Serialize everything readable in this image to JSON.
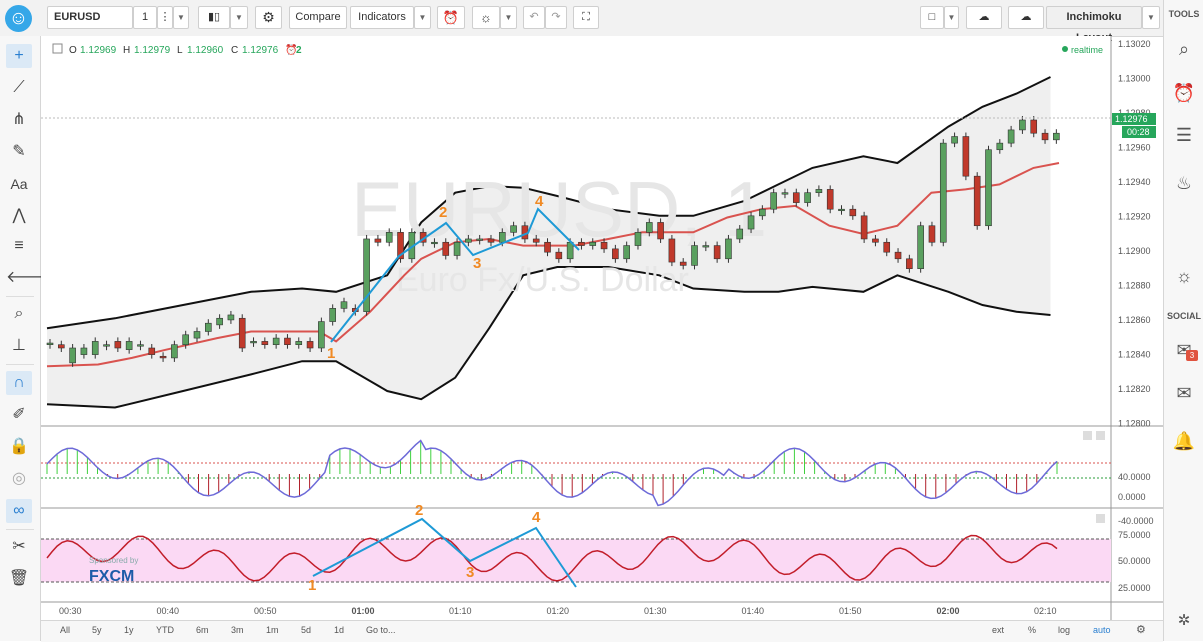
{
  "toolbar": {
    "symbol": "EURUSD",
    "interval": "1",
    "compare_label": "Compare",
    "indicators_label": "Indicators",
    "layout_label": "Inchimoku Layout"
  },
  "legend": {
    "o_label": "O",
    "o_value": "1.12969",
    "h_label": "H",
    "h_value": "1.12979",
    "l_label": "L",
    "l_value": "1.12960",
    "c_label": "C",
    "c_value": "1.12976",
    "alerts_count": "2",
    "realtime": "realtime"
  },
  "watermark": {
    "title": "EURUSD, 1",
    "subtitle": "Euro Fx/U.S. Dollar"
  },
  "sponsor": {
    "line1": "Sponsored by",
    "brand": "FXCM"
  },
  "price_axis": {
    "labels": [
      "1.13020",
      "1.13000",
      "1.12980",
      "1.12960",
      "1.12940",
      "1.12920",
      "1.12900",
      "1.12880",
      "1.12860",
      "1.12840",
      "1.12820",
      "1.12800"
    ],
    "current_price": "1.12976",
    "countdown": "00:28"
  },
  "osc1_axis": {
    "labels": [
      "40.0000",
      "0.0000",
      "-40.0000"
    ]
  },
  "osc2_axis": {
    "labels": [
      "75.0000",
      "50.0000",
      "25.0000"
    ]
  },
  "time_axis": {
    "labels": [
      "00:30",
      "00:40",
      "00:50",
      "01:00",
      "01:10",
      "01:20",
      "01:30",
      "01:40",
      "01:50",
      "02:00",
      "02:10"
    ]
  },
  "wave_labels": {
    "price": [
      "1",
      "2",
      "3",
      "4"
    ],
    "osc": [
      "1",
      "2",
      "3",
      "4"
    ]
  },
  "bottom": {
    "ranges": [
      "All",
      "5y",
      "1y",
      "YTD",
      "6m",
      "3m",
      "1m",
      "5d",
      "1d"
    ],
    "goto": "Go to...",
    "ext": "ext",
    "pct": "%",
    "log": "log",
    "auto": "auto"
  },
  "right_panel": {
    "tools": "TOOLS",
    "social": "SOCIAL",
    "badge": "3"
  },
  "chart_data": {
    "type": "candlestick",
    "x_range": [
      "00:27",
      "02:13"
    ],
    "y_range": [
      1.128,
      1.1303
    ],
    "bands_upper": [
      [
        0,
        1.12858
      ],
      [
        8,
        1.12864
      ],
      [
        16,
        1.12872
      ],
      [
        24,
        1.1288
      ],
      [
        30,
        1.12882
      ],
      [
        34,
        1.1288
      ],
      [
        40,
        1.1289
      ],
      [
        44,
        1.12922
      ],
      [
        48,
        1.1294
      ],
      [
        52,
        1.12944
      ],
      [
        56,
        1.12943
      ],
      [
        60,
        1.12938
      ],
      [
        66,
        1.1293
      ],
      [
        72,
        1.12926
      ],
      [
        76,
        1.12926
      ],
      [
        82,
        1.12935
      ],
      [
        86,
        1.12945
      ],
      [
        90,
        1.12955
      ],
      [
        96,
        1.12962
      ],
      [
        100,
        1.12958
      ],
      [
        106,
        1.1298
      ],
      [
        110,
        1.12992
      ],
      [
        114,
        1.13
      ],
      [
        118,
        1.1301
      ]
    ],
    "bands_lower": [
      [
        0,
        1.12812
      ],
      [
        8,
        1.1281
      ],
      [
        16,
        1.1282
      ],
      [
        24,
        1.1283
      ],
      [
        30,
        1.12838
      ],
      [
        34,
        1.12838
      ],
      [
        40,
        1.1282
      ],
      [
        44,
        1.12815
      ],
      [
        48,
        1.12828
      ],
      [
        52,
        1.12858
      ],
      [
        56,
        1.1289
      ],
      [
        60,
        1.12895
      ],
      [
        66,
        1.12895
      ],
      [
        72,
        1.1289
      ],
      [
        76,
        1.12882
      ],
      [
        82,
        1.1288
      ],
      [
        86,
        1.1288
      ],
      [
        90,
        1.12883
      ],
      [
        96,
        1.1288
      ],
      [
        100,
        1.1289
      ],
      [
        106,
        1.1288
      ],
      [
        110,
        1.12872
      ],
      [
        114,
        1.12868
      ],
      [
        118,
        1.12866
      ]
    ],
    "midline": [
      [
        0,
        1.12835
      ],
      [
        6,
        1.12836
      ],
      [
        10,
        1.1284
      ],
      [
        14,
        1.12845
      ],
      [
        20,
        1.12852
      ],
      [
        24,
        1.12856
      ],
      [
        28,
        1.12856
      ],
      [
        32,
        1.12856
      ],
      [
        34,
        1.1285
      ],
      [
        38,
        1.12868
      ],
      [
        42,
        1.1289
      ],
      [
        44,
        1.129
      ],
      [
        48,
        1.1291
      ],
      [
        52,
        1.12912
      ],
      [
        56,
        1.12908
      ],
      [
        62,
        1.12908
      ],
      [
        66,
        1.12912
      ],
      [
        70,
        1.12916
      ],
      [
        76,
        1.12916
      ],
      [
        80,
        1.12925
      ],
      [
        84,
        1.1293
      ],
      [
        88,
        1.12932
      ],
      [
        92,
        1.1292
      ],
      [
        96,
        1.12915
      ],
      [
        100,
        1.1292
      ],
      [
        104,
        1.1294
      ],
      [
        108,
        1.12942
      ],
      [
        112,
        1.12945
      ],
      [
        116,
        1.12955
      ],
      [
        119,
        1.12958
      ]
    ],
    "candles": [
      [
        0,
        1.12848,
        1.12849
      ],
      [
        2,
        1.12848,
        1.12846
      ],
      [
        4,
        1.12837,
        1.12846
      ],
      [
        6,
        1.12842,
        1.12846
      ],
      [
        8,
        1.12842,
        1.1285
      ],
      [
        10,
        1.12848,
        1.12848
      ],
      [
        12,
        1.1285,
        1.12846
      ],
      [
        14,
        1.12845,
        1.1285
      ],
      [
        16,
        1.12848,
        1.12848
      ],
      [
        18,
        1.12846,
        1.12842
      ],
      [
        20,
        1.12841,
        1.1284
      ],
      [
        22,
        1.1284,
        1.12848
      ],
      [
        24,
        1.12848,
        1.12854
      ],
      [
        26,
        1.12852,
        1.12856
      ],
      [
        28,
        1.12856,
        1.12861
      ],
      [
        30,
        1.1286,
        1.12864
      ],
      [
        32,
        1.12863,
        1.12866
      ],
      [
        34,
        1.12864,
        1.12846
      ],
      [
        36,
        1.1285,
        1.1285
      ],
      [
        38,
        1.1285,
        1.12848
      ],
      [
        40,
        1.12848,
        1.12852
      ],
      [
        42,
        1.12852,
        1.12848
      ],
      [
        44,
        1.12848,
        1.1285
      ],
      [
        46,
        1.1285,
        1.12846
      ],
      [
        48,
        1.12846,
        1.12862
      ],
      [
        50,
        1.12862,
        1.1287
      ],
      [
        52,
        1.1287,
        1.12874
      ],
      [
        54,
        1.1287,
        1.12868
      ],
      [
        56,
        1.12868,
        1.12912
      ],
      [
        58,
        1.12912,
        1.1291
      ],
      [
        60,
        1.1291,
        1.12916
      ],
      [
        62,
        1.12916,
        1.129
      ],
      [
        64,
        1.129,
        1.12916
      ],
      [
        66,
        1.12916,
        1.1291
      ],
      [
        68,
        1.1291,
        1.1291
      ],
      [
        70,
        1.1291,
        1.12902
      ],
      [
        72,
        1.12902,
        1.1291
      ],
      [
        74,
        1.1291,
        1.12912
      ],
      [
        76,
        1.12912,
        1.12912
      ],
      [
        78,
        1.12912,
        1.1291
      ],
      [
        80,
        1.1291,
        1.12916
      ],
      [
        82,
        1.12916,
        1.1292
      ],
      [
        84,
        1.1292,
        1.12912
      ],
      [
        86,
        1.12912,
        1.1291
      ],
      [
        88,
        1.1291,
        1.12904
      ],
      [
        90,
        1.12904,
        1.129
      ],
      [
        92,
        1.129,
        1.1291
      ],
      [
        94,
        1.1291,
        1.12908
      ],
      [
        96,
        1.12908,
        1.1291
      ],
      [
        98,
        1.1291,
        1.12906
      ],
      [
        100,
        1.12906,
        1.129
      ],
      [
        102,
        1.129,
        1.12908
      ],
      [
        104,
        1.12908,
        1.12916
      ],
      [
        106,
        1.12916,
        1.12922
      ],
      [
        108,
        1.12922,
        1.12912
      ],
      [
        110,
        1.12912,
        1.12898
      ],
      [
        112,
        1.12898,
        1.12896
      ],
      [
        114,
        1.12896,
        1.12908
      ],
      [
        116,
        1.12908,
        1.12908
      ],
      [
        118,
        1.12908,
        1.129
      ],
      [
        120,
        1.129,
        1.12912
      ],
      [
        122,
        1.12912,
        1.12918
      ],
      [
        124,
        1.12918,
        1.12926
      ],
      [
        126,
        1.12926,
        1.1293
      ],
      [
        128,
        1.1293,
        1.1294
      ],
      [
        130,
        1.1294,
        1.1294
      ],
      [
        132,
        1.1294,
        1.12934
      ],
      [
        134,
        1.12934,
        1.1294
      ],
      [
        136,
        1.1294,
        1.12942
      ],
      [
        138,
        1.12942,
        1.1293
      ],
      [
        140,
        1.1293,
        1.1293
      ],
      [
        142,
        1.1293,
        1.12926
      ],
      [
        144,
        1.12926,
        1.12912
      ],
      [
        146,
        1.12912,
        1.1291
      ],
      [
        148,
        1.1291,
        1.12904
      ],
      [
        150,
        1.12904,
        1.129
      ],
      [
        152,
        1.129,
        1.12894
      ],
      [
        154,
        1.12894,
        1.1292
      ],
      [
        156,
        1.1292,
        1.1291
      ],
      [
        158,
        1.1291,
        1.1297
      ],
      [
        160,
        1.1297,
        1.12974
      ],
      [
        162,
        1.12974,
        1.1295
      ],
      [
        164,
        1.1295,
        1.1292
      ],
      [
        166,
        1.1292,
        1.12966
      ],
      [
        168,
        1.12966,
        1.1297
      ],
      [
        170,
        1.1297,
        1.12978
      ],
      [
        172,
        1.12978,
        1.12984
      ],
      [
        174,
        1.12984,
        1.12976
      ],
      [
        176,
        1.12976,
        1.12972
      ],
      [
        178,
        1.12972,
        1.12976
      ]
    ]
  }
}
